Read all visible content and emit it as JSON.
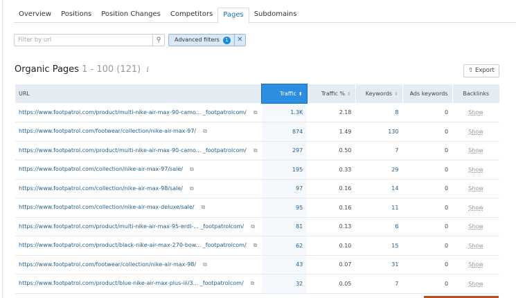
{
  "tabs": [
    "Overview",
    "Positions",
    "Position Changes",
    "Competitors",
    "Pages",
    "Subdomains"
  ],
  "active_tab": "Pages",
  "filter": {
    "placeholder": "Filter by url",
    "value": ""
  },
  "advanced_filters": {
    "label": "Advanced filters",
    "count": "1",
    "clear": "✕"
  },
  "title": {
    "main": "Organic Pages",
    "range": "1 - 100 (121)",
    "info": "i"
  },
  "export_label": "Export",
  "columns": {
    "url": "URL",
    "traffic": "Traffic",
    "traffic_pct": "Traffic %",
    "keywords": "Keywords",
    "ads": "Ads keywords",
    "backlinks": "Backlinks"
  },
  "sorted_column": "Traffic",
  "accent": "#2b8ee0",
  "rows": [
    {
      "url": "https://www.footpatrol.com/product/multi-nike-air-max-90-camo... _footpatrolcom/",
      "traffic": "1.3K",
      "pct": "2.18",
      "kw": "8",
      "ads": "0",
      "bl": "Show"
    },
    {
      "url": "https://www.footpatrol.com/footwear/collection/nike-air-max-97/",
      "traffic": "874",
      "pct": "1.49",
      "kw": "130",
      "ads": "0",
      "bl": "Show"
    },
    {
      "url": "https://www.footpatrol.com/product/multi-nike-air-max-90-camo... _footpatrolcom/",
      "traffic": "297",
      "pct": "0.50",
      "kw": "7",
      "ads": "0",
      "bl": "Show"
    },
    {
      "url": "https://www.footpatrol.com/collection/nike-air-max-97/sale/",
      "traffic": "195",
      "pct": "0.33",
      "kw": "29",
      "ads": "0",
      "bl": "Show"
    },
    {
      "url": "https://www.footpatrol.com/collection/nike-air-max-98/sale/",
      "traffic": "97",
      "pct": "0.16",
      "kw": "14",
      "ads": "0",
      "bl": "Show"
    },
    {
      "url": "https://www.footpatrol.com/collection/nike-air-max-deluxe/sale/",
      "traffic": "95",
      "pct": "0.16",
      "kw": "11",
      "ads": "0",
      "bl": "Show"
    },
    {
      "url": "https://www.footpatrol.com/product/multi-nike-air-max-95-erdl-... _footpatrolcom/",
      "traffic": "81",
      "pct": "0.13",
      "kw": "6",
      "ads": "0",
      "bl": "Show"
    },
    {
      "url": "https://www.footpatrol.com/product/black-nike-air-max-270-bow... _footpatrolcom/",
      "traffic": "62",
      "pct": "0.10",
      "kw": "15",
      "ads": "0",
      "bl": "Show"
    },
    {
      "url": "https://www.footpatrol.com/footwear/collection/nike-air-max-98/",
      "traffic": "43",
      "pct": "0.07",
      "kw": "31",
      "ads": "0",
      "bl": "Show"
    },
    {
      "url": "https://www.footpatrol.com/product/blue-nike-air-max-plus-iii/3... _footpatrolcom/",
      "traffic": "32",
      "pct": "0.05",
      "kw": "7",
      "ads": "0",
      "bl": "Show"
    }
  ]
}
